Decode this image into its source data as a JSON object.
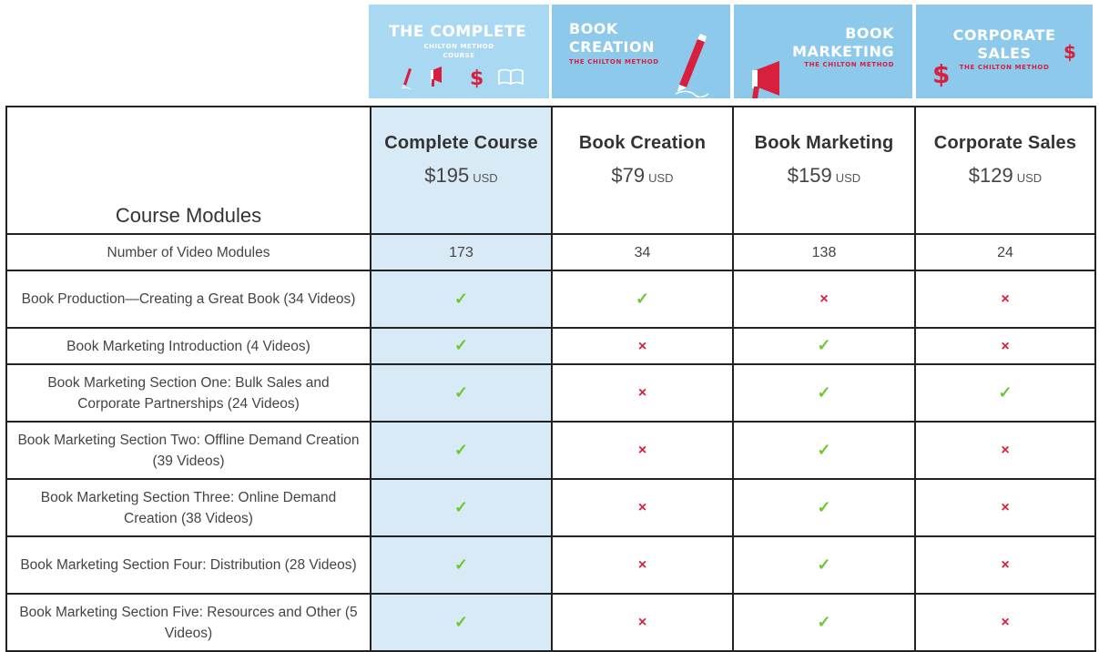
{
  "banners": [
    {
      "title": "THE COMPLETE",
      "sub1": "CHILTON METHOD",
      "sub2": "COURSE"
    },
    {
      "title1": "BOOK",
      "title2": "CREATION",
      "sub": "THE CHILTON METHOD"
    },
    {
      "title1": "BOOK",
      "title2": "MARKETING",
      "sub": "THE CHILTON METHOD"
    },
    {
      "title1": "CORPORATE",
      "title2": "SALES",
      "sub": "THE CHILTON METHOD"
    }
  ],
  "table": {
    "first_header": "Course Modules",
    "plans": [
      {
        "name": "Complete Course",
        "price": "$195",
        "currency": "USD"
      },
      {
        "name": "Book Creation",
        "price": "$79",
        "currency": "USD"
      },
      {
        "name": "Book Marketing",
        "price": "$159",
        "currency": "USD"
      },
      {
        "name": "Corporate Sales",
        "price": "$129",
        "currency": "USD"
      }
    ],
    "count_row": {
      "label": "Number of Video Modules",
      "values": [
        "173",
        "34",
        "138",
        "24"
      ]
    },
    "marks": {
      "yes": "✓",
      "no": "×"
    },
    "rows": [
      {
        "label": "Book Production—Creating a Great Book (34 Videos)",
        "values": [
          true,
          true,
          false,
          false
        ]
      },
      {
        "label": "Book Marketing Introduction (4 Videos)",
        "values": [
          true,
          false,
          true,
          false
        ]
      },
      {
        "label": "Book Marketing Section One: Bulk Sales and Corporate Partnerships (24 Videos)",
        "values": [
          true,
          false,
          true,
          true
        ]
      },
      {
        "label": "Book Marketing Section Two: Offline Demand Creation (39 Videos)",
        "values": [
          true,
          false,
          true,
          false
        ]
      },
      {
        "label": "Book Marketing Section Three: Online Demand Creation (38 Videos)",
        "values": [
          true,
          false,
          true,
          false
        ]
      },
      {
        "label": "Book Marketing Section Four: Distribution (28 Videos)",
        "values": [
          true,
          false,
          true,
          false
        ]
      },
      {
        "label": "Book Marketing Section Five: Resources and Other (5 Videos)",
        "values": [
          true,
          false,
          true,
          false
        ]
      }
    ]
  },
  "colors": {
    "accent_red": "#d81f3e",
    "check_green": "#6ac833",
    "highlight": "#d9eaf7",
    "banner_blue": "#8dc9ea"
  }
}
